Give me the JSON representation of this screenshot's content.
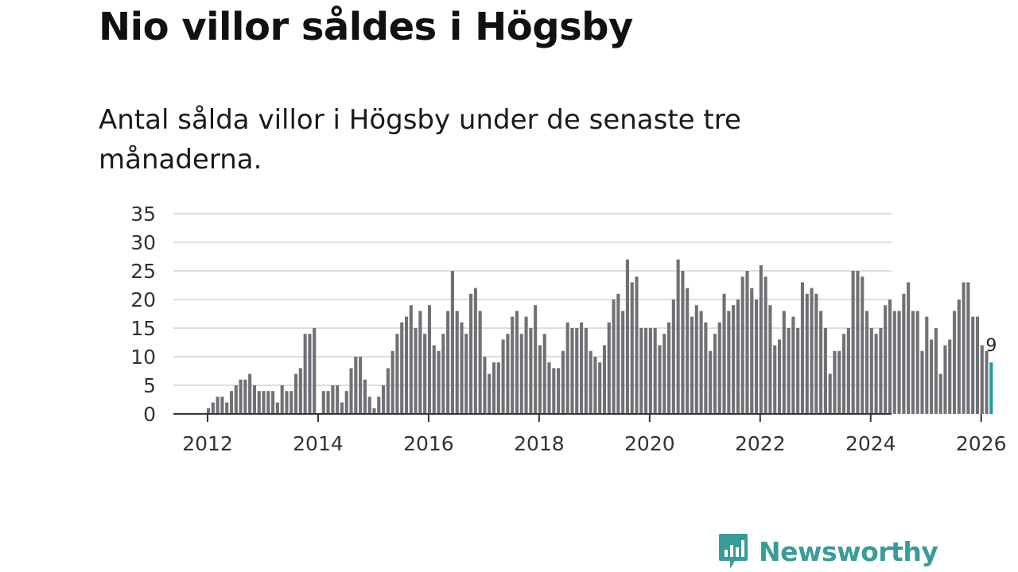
{
  "title": "Nio villor såldes i Högsby",
  "subtitle": "Antal sålda villor i Högsby under de senaste tre månaderna.",
  "brand": {
    "name": "Newsworthy",
    "color": "#3a9c99",
    "icon": "newsworthy-chart-icon"
  },
  "colors": {
    "bar": "#707075",
    "highlight": "#179fa0",
    "grid": "#dddddd",
    "axis": "#333333"
  },
  "chart_data": {
    "type": "bar",
    "title": "Nio villor såldes i Högsby",
    "xlabel": "",
    "ylabel": "",
    "ylim": [
      0,
      35
    ],
    "yticks": [
      0,
      5,
      10,
      15,
      20,
      25,
      30,
      35
    ],
    "xticks": [
      "2012",
      "2014",
      "2016",
      "2018",
      "2020",
      "2022",
      "2024",
      "2026"
    ],
    "x_start": "2012-01",
    "grid": true,
    "highlight_label": "9",
    "values": [
      1,
      2,
      3,
      3,
      2,
      4,
      5,
      6,
      6,
      7,
      5,
      4,
      4,
      4,
      4,
      2,
      5,
      4,
      4,
      7,
      8,
      14,
      14,
      15,
      0,
      4,
      4,
      5,
      5,
      2,
      4,
      8,
      10,
      10,
      6,
      3,
      1,
      3,
      5,
      8,
      11,
      14,
      16,
      17,
      19,
      15,
      18,
      14,
      19,
      12,
      11,
      14,
      18,
      25,
      18,
      16,
      14,
      21,
      22,
      18,
      10,
      7,
      9,
      9,
      13,
      14,
      17,
      18,
      14,
      17,
      15,
      19,
      12,
      14,
      9,
      8,
      8,
      11,
      16,
      15,
      15,
      16,
      15,
      11,
      10,
      9,
      12,
      16,
      20,
      21,
      18,
      27,
      23,
      24,
      15,
      15,
      15,
      15,
      12,
      14,
      16,
      20,
      27,
      25,
      22,
      17,
      19,
      18,
      16,
      11,
      14,
      16,
      21,
      18,
      19,
      20,
      24,
      25,
      22,
      20,
      26,
      24,
      19,
      12,
      13,
      18,
      15,
      17,
      15,
      23,
      21,
      22,
      21,
      18,
      15,
      7,
      11,
      11,
      14,
      15,
      25,
      25,
      24,
      18,
      15,
      14,
      15,
      19,
      20,
      18,
      18,
      21,
      23,
      18,
      18,
      11,
      17,
      13,
      15,
      7,
      12,
      13,
      18,
      20,
      23,
      23,
      17,
      17,
      12,
      11,
      9
    ]
  }
}
